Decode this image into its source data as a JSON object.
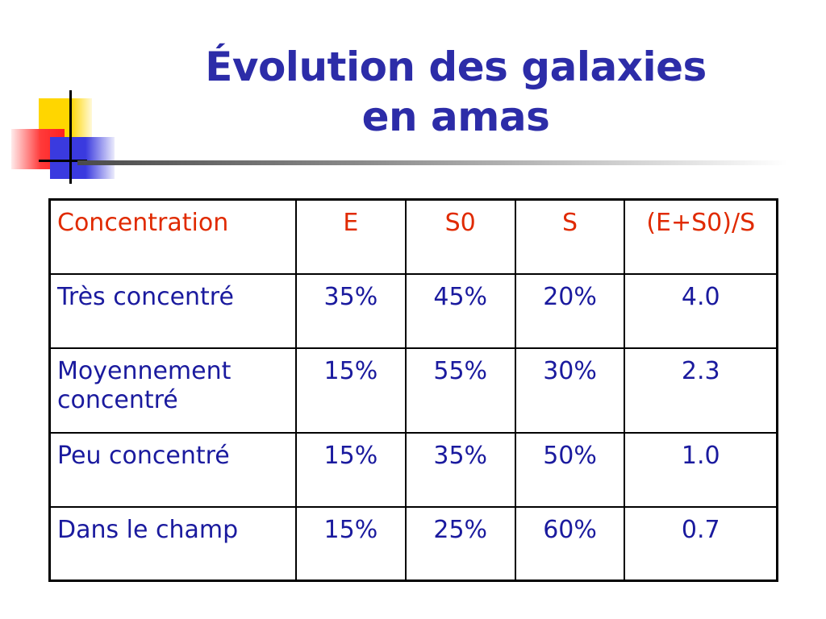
{
  "slide": {
    "title_line1": "Évolution des galaxies",
    "title_line2": "en amas"
  },
  "table": {
    "headers": [
      "Concentration",
      "E",
      "S0",
      "S",
      "(E+S0)/S"
    ],
    "rows": [
      {
        "label": "Très  concentré",
        "E": "35%",
        "S0": "45%",
        "S": "20%",
        "ratio": "4.0"
      },
      {
        "label": "Moyennement concentré",
        "E": "15%",
        "S0": "55%",
        "S": "30%",
        "ratio": "2.3"
      },
      {
        "label": "Peu concentré",
        "E": "15%",
        "S0": "35%",
        "S": "50%",
        "ratio": "1.0"
      },
      {
        "label": "Dans le champ",
        "E": "15%",
        "S0": "25%",
        "S": "60%",
        "ratio": "0.7"
      }
    ]
  },
  "colors": {
    "title": "#2c2ca8",
    "header_text": "#e02a00",
    "body_text": "#1a1a9e"
  }
}
